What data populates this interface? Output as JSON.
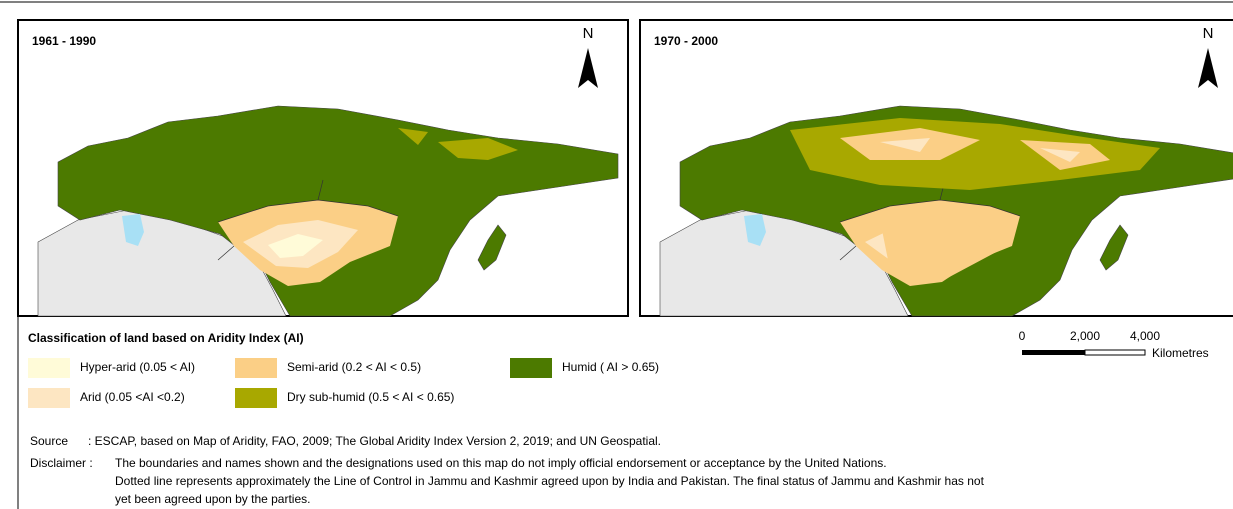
{
  "panels": [
    {
      "title": "1961 - 1990",
      "north": "N"
    },
    {
      "title": "1970 - 2000",
      "north": "N"
    }
  ],
  "legend": {
    "title": "Classification of land based on Aridity Index (AI)",
    "items": [
      {
        "label": "Hyper-arid (0.05 < AI)",
        "color": "#fffbd8"
      },
      {
        "label": "Arid (0.05 <AI <0.2)",
        "color": "#fde6c2"
      },
      {
        "label": "Semi-arid (0.2 < AI < 0.5)",
        "color": "#fbcf86"
      },
      {
        "label": "Dry sub-humid (0.5 < AI < 0.65)",
        "color": "#a8a800"
      },
      {
        "label": "Humid ( AI > 0.65)",
        "color": "#4c7a00"
      }
    ]
  },
  "scale_bar": {
    "ticks": [
      "0",
      "2,000",
      "4,000"
    ],
    "unit": "Kilometres"
  },
  "source": {
    "label": "Source",
    "text": ": ESCAP, based on Map of Aridity, FAO, 2009; The Global Aridity Index Version 2, 2019; and UN Geospatial."
  },
  "disclaimer": {
    "label": "Disclaimer :",
    "lines": [
      "The boundaries and names shown and the designations used on this map do not imply official endorsement or acceptance by the United Nations.",
      "Dotted line represents approximately the Line of Control in Jammu and Kashmir agreed upon by India and Pakistan. The final status of Jammu and Kashmir has not",
      "yet been agreed upon by the parties."
    ]
  }
}
